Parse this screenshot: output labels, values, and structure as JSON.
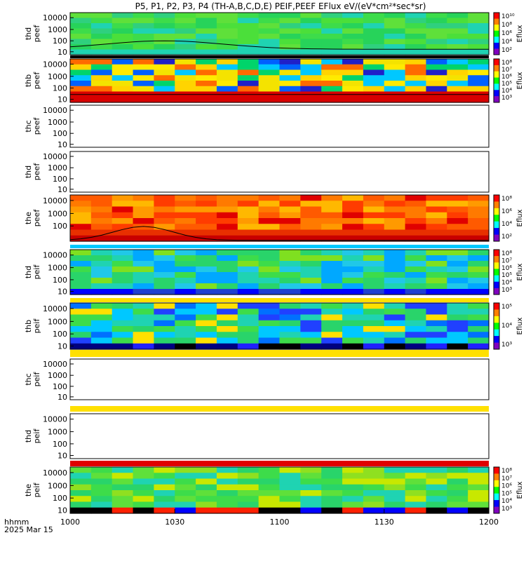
{
  "chart_data": {
    "type": "heatmap",
    "title": "P5, P1, P2, P3, P4 (TH-A,B,C,D,E) PEIF,PEEF EFlux eV/(eV*cm²*sec*sr)",
    "x_label_line1": "hhmm",
    "x_label_line2": "2025 Mar 15",
    "x_range": [
      "1000",
      "1200"
    ],
    "x_ticks": [
      "1000",
      "1030",
      "1100",
      "1130",
      "1200"
    ],
    "colorbar_label": "Eflux",
    "panels": [
      {
        "probe": "thd",
        "product": "peef",
        "y_ticks": [
          "10000",
          "1000",
          "100",
          "10"
        ],
        "has_data": true,
        "palette": "green",
        "colorbar_ticks": [
          "10¹⁰",
          "10⁸",
          "10⁶",
          "10⁴",
          "10²"
        ],
        "overlay_line": true
      },
      {
        "probe": "thb",
        "product": "peef",
        "y_ticks": [
          "10000",
          "1000",
          "100",
          "10"
        ],
        "has_data": true,
        "palette": "mixed",
        "colorbar_ticks": [
          "10⁸",
          "10⁷",
          "10⁶",
          "10⁵",
          "10⁴",
          "10³"
        ],
        "overlay_line": true
      },
      {
        "probe": "thc",
        "product": "peef",
        "y_ticks": [
          "10000",
          "1000",
          "100",
          "10"
        ],
        "has_data": false
      },
      {
        "probe": "thd",
        "product": "peef",
        "y_ticks": [
          "10000",
          "1000",
          "100",
          "10"
        ],
        "has_data": false
      },
      {
        "probe": "the",
        "product": "peef",
        "y_ticks": [
          "10000",
          "1000",
          "100"
        ],
        "has_data": true,
        "palette": "hot",
        "colorbar_ticks": [
          "10⁸",
          "10⁶",
          "10⁴",
          "10²"
        ],
        "overlay_line": true
      },
      {
        "probe": "thd",
        "product": "peif",
        "y_ticks": [
          "10000",
          "1000",
          "100",
          "10"
        ],
        "has_data": true,
        "palette": "ion",
        "colorbar_ticks": [
          "10⁸",
          "10⁷",
          "10⁶",
          "10⁵",
          "10⁴",
          "10³"
        ]
      },
      {
        "probe": "thb",
        "product": "peif",
        "y_ticks": [
          "10000",
          "1000",
          "100",
          "10"
        ],
        "has_data": true,
        "palette": "ion2",
        "colorbar_ticks": [
          "10⁵",
          "10⁴",
          "10³"
        ]
      },
      {
        "probe": "thc",
        "product": "peif",
        "y_ticks": [
          "10000",
          "1000",
          "100",
          "10"
        ],
        "has_data": false
      },
      {
        "probe": "thd",
        "product": "peif",
        "y_ticks": [
          "10000",
          "1000",
          "100",
          "10"
        ],
        "has_data": false
      },
      {
        "probe": "the",
        "product": "peif",
        "y_ticks": [
          "10000",
          "1000",
          "100",
          "10"
        ],
        "has_data": true,
        "palette": "ion3",
        "colorbar_ticks": [
          "10⁸",
          "10⁷",
          "10⁶",
          "10⁵",
          "10⁴",
          "10³"
        ]
      }
    ]
  }
}
